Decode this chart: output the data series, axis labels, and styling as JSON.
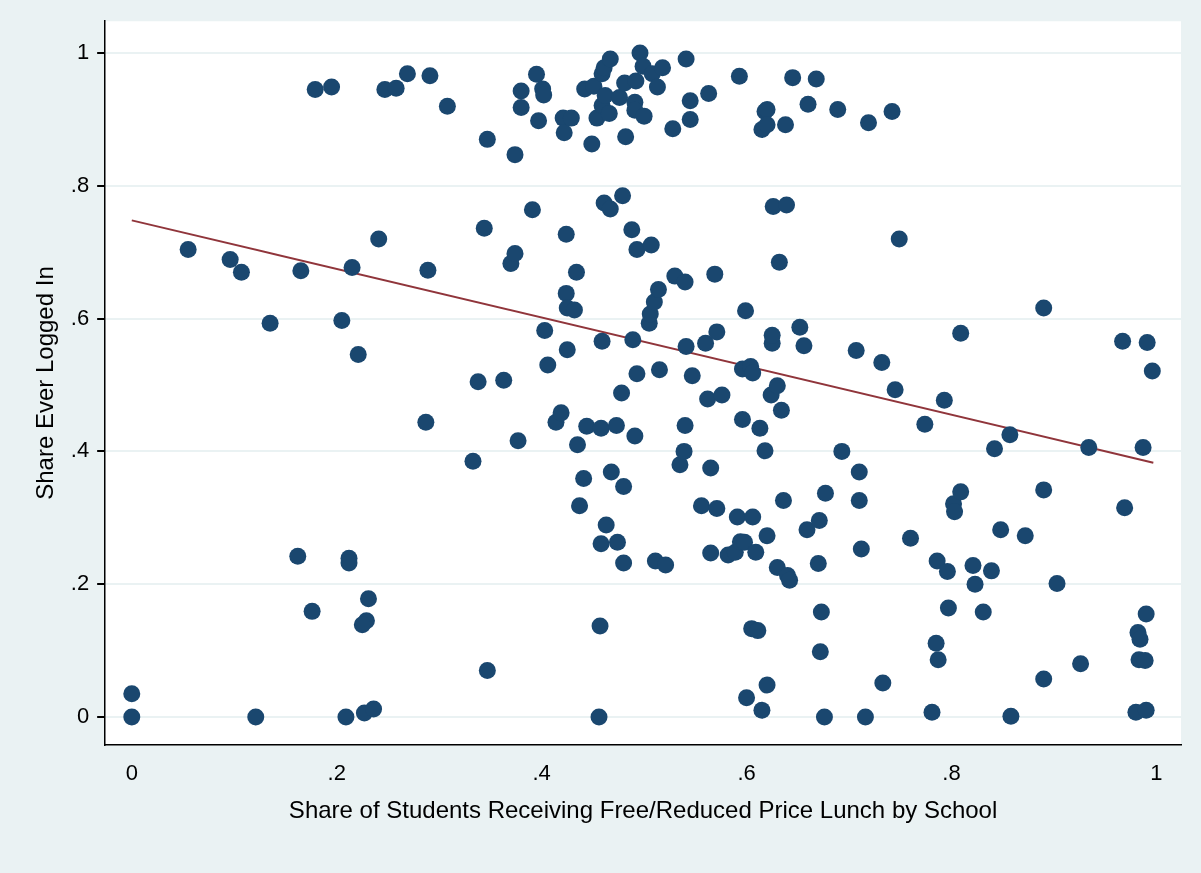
{
  "chart_data": {
    "type": "scatter",
    "xlabel": "Share of Students Receiving Free/Reduced Price Lunch by School",
    "ylabel": "Share Ever Logged In",
    "xlim": [
      -0.026,
      1.024
    ],
    "ylim": [
      -0.042,
      1.048
    ],
    "xticks": [
      0,
      {
        "value": 0.2,
        "label": ".2"
      },
      {
        "value": 0.4,
        "label": ".4"
      },
      {
        "value": 0.6,
        "label": ".6"
      },
      {
        "value": 0.8,
        "label": ".8"
      },
      1
    ],
    "yticks": [
      0,
      {
        "value": 0.2,
        "label": ".2"
      },
      {
        "value": 0.4,
        "label": ".4"
      },
      {
        "value": 0.6,
        "label": ".6"
      },
      {
        "value": 0.8,
        "label": ".8"
      },
      1
    ],
    "grid": "y",
    "marker": "circle",
    "series": [
      {
        "color": "#1a476f",
        "x": [
          0,
          0,
          0.055,
          0.096,
          0.107,
          0.135,
          0.165,
          0.179,
          0.195,
          0.247,
          0.258,
          0.269,
          0.291,
          0.308,
          0.205,
          0.215,
          0.221,
          0.241,
          0.287,
          0.289,
          0.162,
          0.176,
          0.212,
          0.212,
          0.231,
          0.229,
          0.225,
          0.227,
          0.236,
          0.209,
          0.121,
          0.333,
          0.338,
          0.344,
          0.347,
          0.347,
          0.363,
          0.37,
          0.374,
          0.374,
          0.377,
          0.38,
          0.38,
          0.391,
          0.395,
          0.397,
          0.401,
          0.402,
          0.403,
          0.406,
          0.414,
          0.419,
          0.421,
          0.422,
          0.429,
          0.424,
          0.424,
          0.425,
          0.425,
          0.432,
          0.434,
          0.435,
          0.437,
          0.441,
          0.442,
          0.444,
          0.449,
          0.451,
          0.454,
          0.456,
          0.457,
          0.458,
          0.459,
          0.458,
          0.459,
          0.459,
          0.461,
          0.463,
          0.461,
          0.467,
          0.462,
          0.466,
          0.467,
          0.468,
          0.473,
          0.474,
          0.476,
          0.478,
          0.48,
          0.48,
          0.479,
          0.481,
          0.482,
          0.488,
          0.489,
          0.491,
          0.491,
          0.491,
          0.492,
          0.493,
          0.493,
          0.496,
          0.499,
          0.5,
          0.505,
          0.506,
          0.507,
          0.508,
          0.51,
          0.511,
          0.513,
          0.514,
          0.515,
          0.518,
          0.521,
          0.528,
          0.53,
          0.535,
          0.539,
          0.54,
          0.54,
          0.541,
          0.541,
          0.545,
          0.545,
          0.547,
          0.556,
          0.56,
          0.562,
          0.563,
          0.565,
          0.565,
          0.569,
          0.571,
          0.571,
          0.576,
          0.582,
          0.589,
          0.591,
          0.593,
          0.594,
          0.598,
          0.596,
          0.596,
          0.599,
          0.6,
          0.604,
          0.605,
          0.606,
          0.606,
          0.609,
          0.611,
          0.613,
          0.615,
          0.615,
          0.618,
          0.62,
          0.62,
          0.618,
          0.62,
          0.62,
          0.624,
          0.625,
          0.625,
          0.626,
          0.63,
          0.63,
          0.632,
          0.634,
          0.636,
          0.638,
          0.639,
          0.64,
          0.642,
          0.645,
          0.652,
          0.656,
          0.659,
          0.66,
          0.668,
          0.67,
          0.671,
          0.672,
          0.673,
          0.676,
          0.677,
          0.689,
          0.693,
          0.707,
          0.71,
          0.71,
          0.712,
          0.716,
          0.719,
          0.732,
          0.733,
          0.742,
          0.745,
          0.749,
          0.76,
          0.774,
          0.781,
          0.785,
          0.786,
          0.787,
          0.793,
          0.796,
          0.797,
          0.802,
          0.803,
          0.809,
          0.809,
          0.821,
          0.823,
          0.831,
          0.839,
          0.842,
          0.848,
          0.857,
          0.858,
          0.872,
          0.89,
          0.89,
          0.89,
          0.903,
          0.926,
          0.934,
          0.967,
          0.969,
          0.98,
          0.982,
          0.984,
          0.983,
          0.987,
          0.989,
          0.99,
          0.99,
          0.991,
          0.996
        ],
        "values": [
          0.035,
          0,
          0.704,
          0.689,
          0.67,
          0.593,
          0.672,
          0.945,
          0.949,
          0.945,
          0.947,
          0.969,
          0.966,
          0.92,
          0.597,
          0.677,
          0.546,
          0.72,
          0.444,
          0.673,
          0.242,
          0.159,
          0.239,
          0.232,
          0.178,
          0.145,
          0.139,
          0.006,
          0.012,
          0,
          0,
          0.385,
          0.505,
          0.736,
          0.87,
          0.07,
          0.507,
          0.683,
          0.698,
          0.847,
          0.416,
          0.943,
          0.918,
          0.764,
          0.968,
          0.898,
          0.946,
          0.937,
          0.582,
          0.53,
          0.444,
          0.458,
          0.902,
          0.88,
          0.902,
          0.727,
          0.638,
          0.616,
          0.553,
          0.613,
          0.67,
          0.41,
          0.318,
          0.359,
          0.946,
          0.438,
          0.863,
          0.95,
          0.902,
          0,
          0.137,
          0.435,
          0.566,
          0.261,
          0.921,
          0.969,
          0.978,
          0.289,
          0.774,
          0.765,
          0.936,
          0.909,
          0.991,
          0.369,
          0.439,
          0.263,
          0.933,
          0.488,
          0.347,
          0.232,
          0.785,
          0.955,
          0.874,
          0.734,
          0.568,
          0.926,
          0.914,
          0.423,
          0.958,
          0.704,
          0.517,
          1.0,
          0.98,
          0.905,
          0.593,
          0.607,
          0.711,
          0.969,
          0.625,
          0.235,
          0.949,
          0.644,
          0.523,
          0.978,
          0.229,
          0.886,
          0.664,
          0.38,
          0.4,
          0.439,
          0.655,
          0.991,
          0.558,
          0.928,
          0.9,
          0.514,
          0.318,
          0.563,
          0.479,
          0.939,
          0.247,
          0.375,
          0.667,
          0.314,
          0.58,
          0.485,
          0.244,
          0.248,
          0.301,
          0.965,
          0.264,
          0.263,
          0.524,
          0.448,
          0.612,
          0.029,
          0.528,
          0.133,
          0.301,
          0.518,
          0.248,
          0.13,
          0.435,
          0.885,
          0.01,
          0.912,
          0.915,
          0.892,
          0.401,
          0.048,
          0.273,
          0.485,
          0.563,
          0.575,
          0.769,
          0.499,
          0.225,
          0.685,
          0.462,
          0.326,
          0.892,
          0.771,
          0.213,
          0.206,
          0.963,
          0.587,
          0.559,
          0.282,
          0.923,
          0.961,
          0.231,
          0.296,
          0.098,
          0.158,
          0,
          0.337,
          0.915,
          0.4,
          0.552,
          0.369,
          0.326,
          0.253,
          0,
          0.895,
          0.534,
          0.051,
          0.912,
          0.493,
          0.72,
          0.269,
          0.441,
          0.007,
          0.111,
          0.235,
          0.086,
          0.477,
          0.219,
          0.164,
          0.321,
          0.309,
          0.578,
          0.339,
          0.228,
          0.2,
          0.158,
          0.22,
          0.404,
          0.282,
          0.425,
          0.001,
          0.273,
          0.057,
          0.342,
          0.616,
          0.201,
          0.08,
          0.406,
          0.566,
          0.315,
          0.007,
          0.127,
          0.117,
          0.086,
          0.406,
          0.085,
          0.155,
          0.01,
          0.564,
          0.521
        ]
      },
      {
        "type": "line",
        "color": "#90353b",
        "marker": "none",
        "line_style": "solid",
        "x": [
          0,
          0.997
        ],
        "values": [
          0.748,
          0.383
        ]
      }
    ]
  }
}
